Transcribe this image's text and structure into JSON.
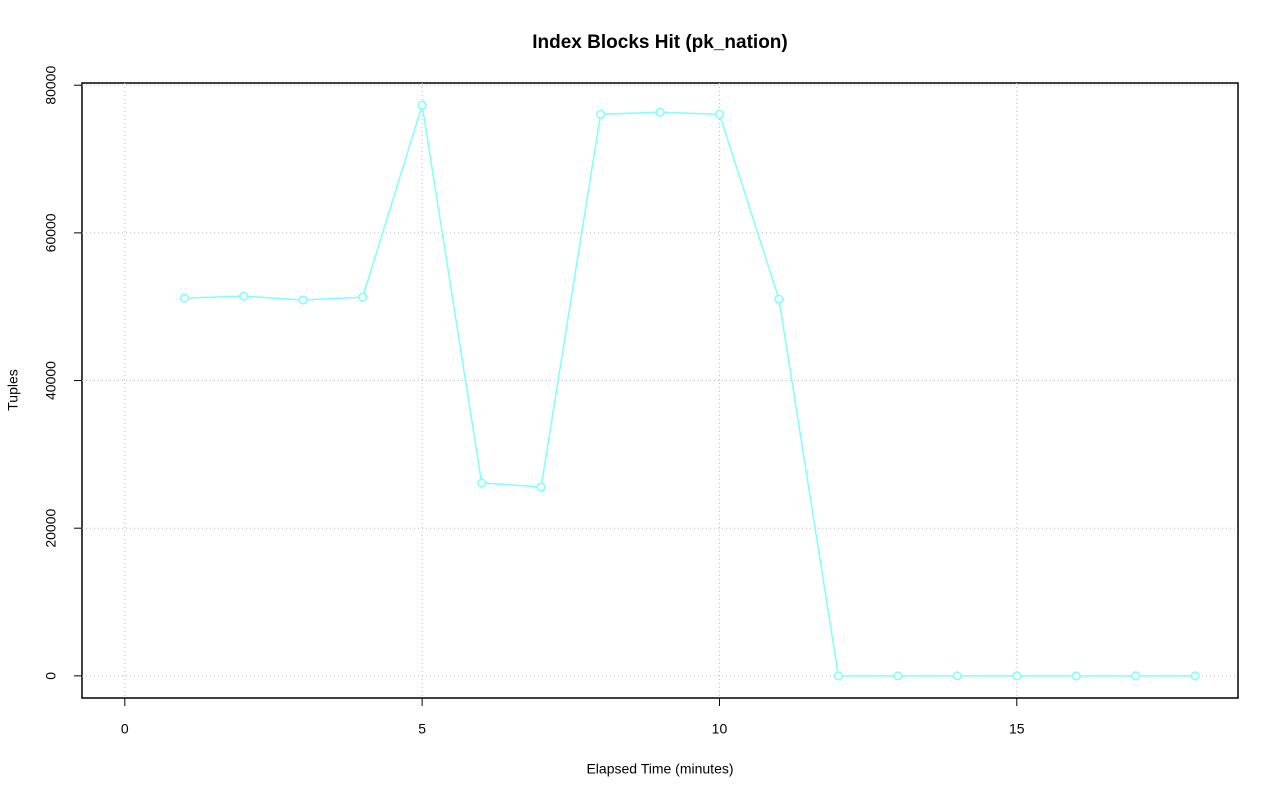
{
  "chart_data": {
    "type": "line",
    "title": "Index Blocks Hit (pk_nation)",
    "x_label": "Elapsed Time (minutes)",
    "y_label": "Tuples",
    "x": [
      1,
      2,
      3,
      4,
      5,
      6,
      7,
      8,
      9,
      10,
      11,
      12,
      13,
      14,
      15,
      16,
      17,
      18
    ],
    "series": [
      {
        "name": "pk_nation",
        "color": "#7fffff",
        "values": [
          51170,
          51440,
          50900,
          51300,
          77290,
          26130,
          25580,
          76070,
          76340,
          76070,
          51030,
          0,
          0,
          0,
          0,
          0,
          0,
          0
        ]
      }
    ],
    "xlim": [
      -0.72,
      18.72
    ],
    "xticks": [
      0,
      5,
      10,
      15
    ],
    "ylim": [
      -3000,
      80300
    ],
    "yticks": [
      0,
      20000,
      40000,
      60000,
      80000
    ],
    "grid": true
  }
}
